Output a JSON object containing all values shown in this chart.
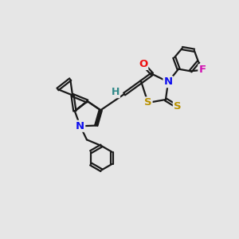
{
  "background_color": "#e6e6e6",
  "bond_color": "#1a1a1a",
  "dbo": 0.055,
  "atom_colors": {
    "N": "#1010ee",
    "S": "#b89000",
    "O": "#ee1010",
    "F": "#d010b0",
    "H": "#308888",
    "C": "#1a1a1a"
  },
  "lw": 1.6,
  "fs": 9.5
}
